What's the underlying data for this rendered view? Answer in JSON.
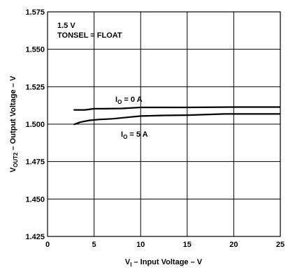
{
  "chart_data": {
    "type": "line",
    "title": "",
    "xlabel": {
      "main": "V",
      "sub": "I",
      "rest": " – Input Voltage – V"
    },
    "ylabel": {
      "main": "V",
      "sub": "OUT2",
      "rest": " – Output Voltage – V"
    },
    "xlim": [
      0,
      25
    ],
    "ylim": [
      1.425,
      1.575
    ],
    "x_ticks": [
      0,
      5,
      10,
      15,
      20,
      25
    ],
    "x_tick_labels": [
      "0",
      "5",
      "10",
      "15",
      "20",
      "25"
    ],
    "y_ticks": [
      1.425,
      1.45,
      1.475,
      1.5,
      1.525,
      1.55,
      1.575
    ],
    "y_tick_labels": [
      "1.425",
      "1.450",
      "1.475",
      "1.500",
      "1.525",
      "1.550",
      "1.575"
    ],
    "grid": true,
    "annotations": [
      "1.5 V",
      "TONSEL = FLOAT"
    ],
    "series": [
      {
        "label": {
          "main": "I",
          "sub": "O",
          "rest": " = 0 A"
        },
        "x": [
          2.8,
          4.0,
          5.0,
          6.0,
          8.0,
          10.0,
          15.0,
          20.0,
          25.0
        ],
        "y": [
          1.5095,
          1.5095,
          1.5103,
          1.5103,
          1.5105,
          1.5112,
          1.5112,
          1.5114,
          1.5114
        ]
      },
      {
        "label": {
          "main": "I",
          "sub": "O",
          "rest": " = 5 A"
        },
        "x": [
          2.8,
          3.5,
          4.5,
          5.5,
          7.0,
          8.5,
          10.0,
          12.5,
          15.0,
          19.0,
          25.0
        ],
        "y": [
          1.4997,
          1.5013,
          1.5025,
          1.5031,
          1.5036,
          1.5045,
          1.5054,
          1.5058,
          1.506,
          1.5068,
          1.5068
        ]
      }
    ]
  }
}
